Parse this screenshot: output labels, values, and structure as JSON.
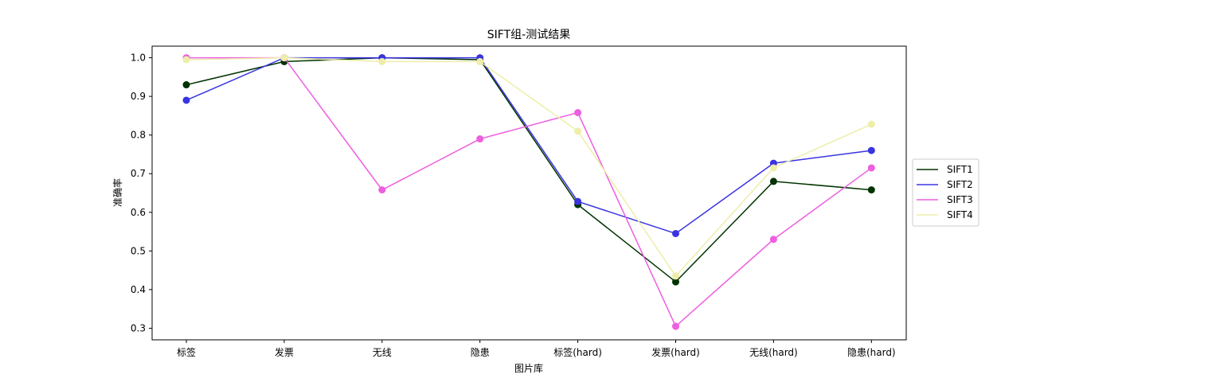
{
  "chart_data": {
    "type": "line",
    "title": "SIFT组-测试结果",
    "xlabel": "图片库",
    "ylabel": "准确率",
    "categories": [
      "标签",
      "发票",
      "无线",
      "隐患",
      "标签(hard)",
      "发票(hard)",
      "无线(hard)",
      "隐患(hard)"
    ],
    "ylim": [
      0.27,
      1.03
    ],
    "yticks": [
      "0.3",
      "0.4",
      "0.5",
      "0.6",
      "0.7",
      "0.8",
      "0.9",
      "1.0"
    ],
    "grid": false,
    "legend_position": "right",
    "markers": true,
    "series": [
      {
        "name": "SIFT1",
        "color": "#003300",
        "values": [
          0.93,
          0.99,
          1.0,
          0.995,
          0.62,
          0.42,
          0.68,
          0.658
        ]
      },
      {
        "name": "SIFT2",
        "color": "#3a33e0",
        "values": [
          0.89,
          1.0,
          1.0,
          1.0,
          0.628,
          0.545,
          0.727,
          0.76
        ]
      },
      {
        "name": "SIFT3",
        "color": "#ee5ee0",
        "values": [
          1.0,
          1.0,
          0.658,
          0.79,
          0.858,
          0.305,
          0.53,
          0.715
        ]
      },
      {
        "name": "SIFT4",
        "color": "#eeeeaa",
        "values": [
          0.995,
          1.0,
          0.99,
          0.99,
          0.81,
          0.435,
          0.715,
          0.828
        ]
      }
    ]
  }
}
